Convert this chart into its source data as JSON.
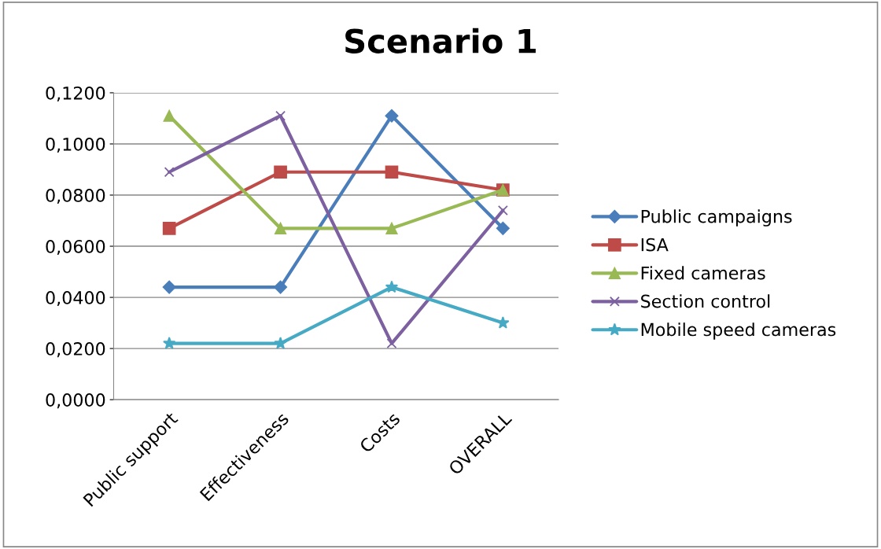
{
  "chart_data": {
    "type": "line",
    "title": "Scenario 1",
    "categories": [
      "Public support",
      "Effectiveness",
      "Costs",
      "OVERALL"
    ],
    "series": [
      {
        "name": "Public campaigns",
        "color": "#4a7ebb",
        "marker": "diamond",
        "values": [
          0.044,
          0.044,
          0.111,
          0.067
        ]
      },
      {
        "name": "ISA",
        "color": "#be4b48",
        "marker": "square",
        "values": [
          0.067,
          0.089,
          0.089,
          0.082
        ]
      },
      {
        "name": "Fixed cameras",
        "color": "#98b954",
        "marker": "triangle",
        "values": [
          0.111,
          0.067,
          0.067,
          0.082
        ]
      },
      {
        "name": "Section control",
        "color": "#7d60a0",
        "marker": "cross",
        "values": [
          0.089,
          0.111,
          0.022,
          0.074
        ]
      },
      {
        "name": "Mobile speed cameras",
        "color": "#46aac5",
        "marker": "star",
        "values": [
          0.022,
          0.022,
          0.044,
          0.03
        ]
      }
    ],
    "ylim": [
      0,
      0.12
    ],
    "yticks": [
      {
        "value": 0,
        "label": "0,0000"
      },
      {
        "value": 0.02,
        "label": "0,0200"
      },
      {
        "value": 0.04,
        "label": "0,0400"
      },
      {
        "value": 0.06,
        "label": "0,0600"
      },
      {
        "value": 0.08,
        "label": "0,0800"
      },
      {
        "value": 0.1,
        "label": "0,1000"
      },
      {
        "value": 0.12,
        "label": "0,1200"
      }
    ],
    "grid": "y",
    "legend": "right"
  }
}
